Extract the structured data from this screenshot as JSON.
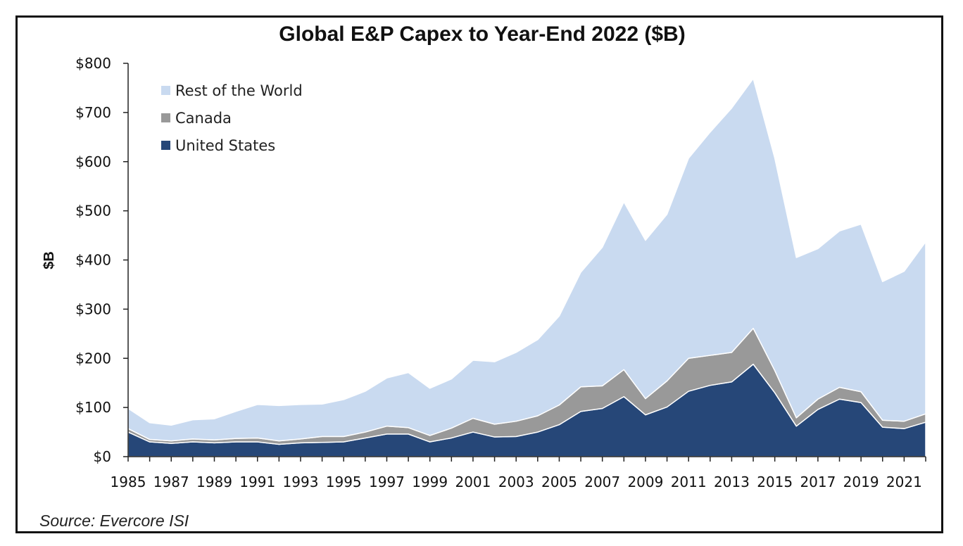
{
  "chart_data": {
    "type": "area",
    "stacked": true,
    "title": "Global E&P Capex to Year-End 2022 ($B)",
    "ylabel": "$B",
    "xlabel": "",
    "source": "Source: Evercore ISI",
    "ylim": [
      0,
      800
    ],
    "yticks": [
      "$0",
      "$100",
      "$200",
      "$300",
      "$400",
      "$500",
      "$600",
      "$700",
      "$800"
    ],
    "ytick_values": [
      0,
      100,
      200,
      300,
      400,
      500,
      600,
      700,
      800
    ],
    "xlim": [
      1985,
      2022
    ],
    "xtick_labels": [
      "1985",
      "1987",
      "1989",
      "1991",
      "1993",
      "1995",
      "1997",
      "1999",
      "2001",
      "2003",
      "2005",
      "2007",
      "2009",
      "2011",
      "2013",
      "2015",
      "2017",
      "2019",
      "2021"
    ],
    "legend_position": "top-left",
    "x": [
      1985,
      1986,
      1987,
      1988,
      1989,
      1990,
      1991,
      1992,
      1993,
      1994,
      1995,
      1996,
      1997,
      1998,
      1999,
      2000,
      2001,
      2002,
      2003,
      2004,
      2005,
      2006,
      2007,
      2008,
      2009,
      2010,
      2011,
      2012,
      2013,
      2014,
      2015,
      2016,
      2017,
      2018,
      2019,
      2020,
      2021,
      2022
    ],
    "series": [
      {
        "name": "United States",
        "color": "#264778",
        "values": [
          50,
          30,
          27,
          30,
          28,
          30,
          30,
          25,
          28,
          29,
          30,
          38,
          46,
          46,
          30,
          38,
          50,
          40,
          41,
          50,
          65,
          92,
          98,
          122,
          85,
          101,
          133,
          145,
          152,
          188,
          130,
          62,
          96,
          117,
          110,
          60,
          57,
          70
        ]
      },
      {
        "name": "Canada",
        "color": "#999999",
        "values": [
          7,
          5,
          5,
          6,
          6,
          7,
          8,
          7,
          8,
          12,
          11,
          12,
          16,
          13,
          13,
          20,
          28,
          26,
          31,
          33,
          40,
          50,
          46,
          55,
          33,
          53,
          67,
          61,
          60,
          73,
          45,
          17,
          21,
          24,
          22,
          14,
          15,
          17
        ]
      },
      {
        "name": "Rest of the World",
        "color": "#c9daf0",
        "values": [
          41,
          34,
          32,
          39,
          43,
          55,
          68,
          72,
          70,
          66,
          75,
          83,
          98,
          112,
          96,
          100,
          118,
          127,
          140,
          155,
          181,
          233,
          282,
          341,
          322,
          339,
          407,
          454,
          497,
          508,
          432,
          326,
          306,
          318,
          341,
          282,
          305,
          350
        ]
      }
    ]
  }
}
